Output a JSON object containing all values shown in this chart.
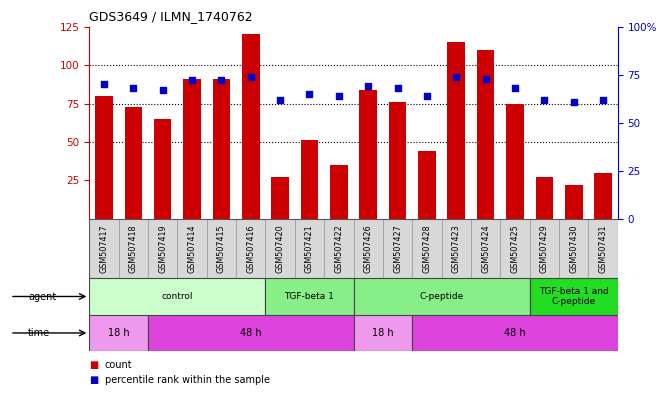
{
  "title": "GDS3649 / ILMN_1740762",
  "samples": [
    "GSM507417",
    "GSM507418",
    "GSM507419",
    "GSM507414",
    "GSM507415",
    "GSM507416",
    "GSM507420",
    "GSM507421",
    "GSM507422",
    "GSM507426",
    "GSM507427",
    "GSM507428",
    "GSM507423",
    "GSM507424",
    "GSM507425",
    "GSM507429",
    "GSM507430",
    "GSM507431"
  ],
  "counts": [
    80,
    73,
    65,
    91,
    91,
    120,
    27,
    51,
    35,
    84,
    76,
    44,
    115,
    110,
    75,
    27,
    22,
    30
  ],
  "percentiles_pct": [
    70,
    68,
    67,
    72,
    72,
    74,
    62,
    65,
    64,
    69,
    68,
    64,
    74,
    73,
    68,
    62,
    61,
    62
  ],
  "bar_color": "#cc0000",
  "dot_color": "#0000cc",
  "ylim_left": [
    0,
    125
  ],
  "ylim_right": [
    0,
    100
  ],
  "yticks_left": [
    25,
    50,
    75,
    100,
    125
  ],
  "yticks_right": [
    0,
    25,
    50,
    75,
    100
  ],
  "yticklabels_right": [
    "0",
    "25",
    "50",
    "75",
    "100%"
  ],
  "agent_groups": [
    {
      "label": "control",
      "start": 0,
      "end": 6,
      "color": "#ccffcc"
    },
    {
      "label": "TGF-beta 1",
      "start": 6,
      "end": 9,
      "color": "#88ee88"
    },
    {
      "label": "C-peptide",
      "start": 9,
      "end": 15,
      "color": "#88ee88"
    },
    {
      "label": "TGF-beta 1 and\nC-peptide",
      "start": 15,
      "end": 18,
      "color": "#22dd22"
    }
  ],
  "time_groups": [
    {
      "label": "18 h",
      "start": 0,
      "end": 2,
      "color": "#ee99ee"
    },
    {
      "label": "48 h",
      "start": 2,
      "end": 9,
      "color": "#dd44dd"
    },
    {
      "label": "18 h",
      "start": 9,
      "end": 11,
      "color": "#ee99ee"
    },
    {
      "label": "48 h",
      "start": 11,
      "end": 18,
      "color": "#dd44dd"
    }
  ],
  "legend_items": [
    {
      "label": "count",
      "color": "#cc0000"
    },
    {
      "label": "percentile rank within the sample",
      "color": "#0000cc"
    }
  ],
  "bg_color": "#ffffff",
  "tick_label_color": "#cc0000",
  "right_tick_color": "#0000cc",
  "cell_color": "#d8d8d8",
  "cell_edge_color": "#999999"
}
